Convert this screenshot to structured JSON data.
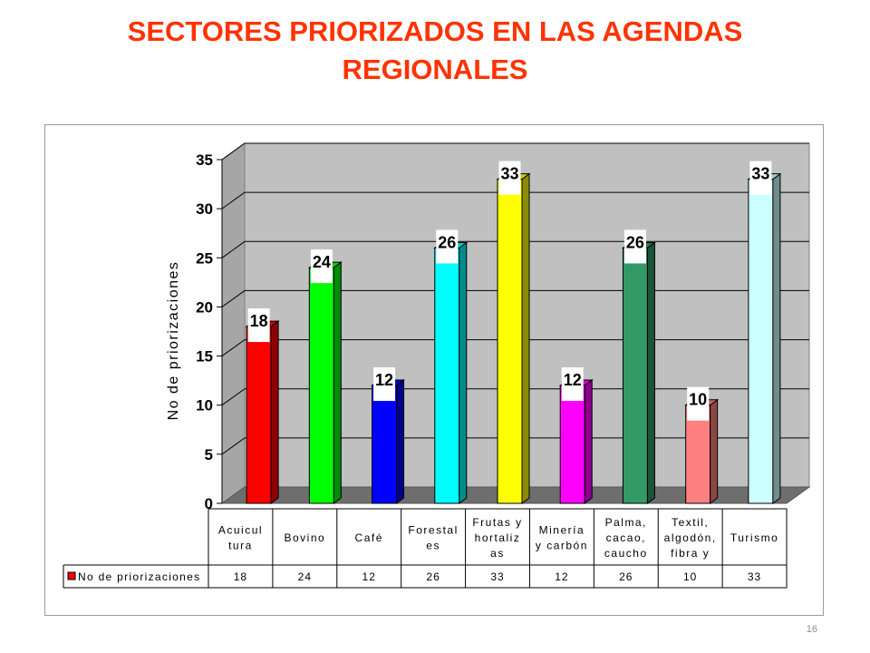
{
  "slide": {
    "title_line1": "SECTORES PRIORIZADOS  EN LAS AGENDAS",
    "title_line2": "REGIONALES",
    "page_number": "16"
  },
  "chart_data": {
    "type": "bar",
    "ylabel": "No de priorizaciones",
    "ylim": [
      0,
      35
    ],
    "yticks": [
      0,
      5,
      10,
      15,
      20,
      25,
      30,
      35
    ],
    "grid": true,
    "three_d": true,
    "categories": [
      [
        "Acuicul",
        "tura"
      ],
      [
        "Bovino"
      ],
      [
        "Café"
      ],
      [
        "Forestal",
        "es"
      ],
      [
        "Frutas y",
        "hortaliz",
        "as"
      ],
      [
        "Minería",
        "y carbón"
      ],
      [
        "Palma,",
        "cacao,",
        "caucho"
      ],
      [
        "Textil,",
        "algodón,",
        "fibra y"
      ],
      [
        "Turismo"
      ]
    ],
    "series": [
      {
        "name": "No de priorizaciones",
        "values": [
          18,
          24,
          12,
          26,
          33,
          12,
          26,
          10,
          33
        ],
        "colors": [
          "#ff0000",
          "#00ff00",
          "#0000ff",
          "#00ffff",
          "#ffff00",
          "#ff00ff",
          "#339966",
          "#ff8080",
          "#ccffff"
        ]
      }
    ],
    "data_table": true
  }
}
